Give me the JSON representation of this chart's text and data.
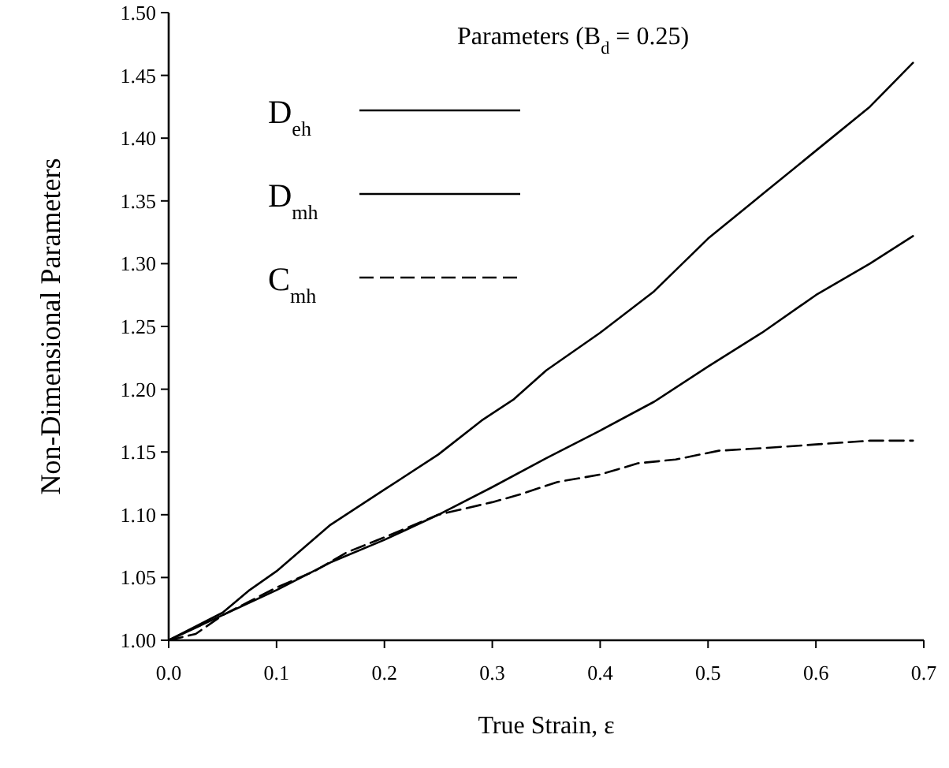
{
  "chart_data": {
    "type": "line",
    "legend_title": "Parameters (B$_{d}$ = 0.25)",
    "xlabel": "True Strain, ε",
    "ylabel": "Non-Dimensional Parameters",
    "xlim": [
      0,
      0.7
    ],
    "xticks": [
      {
        "value": 0,
        "label": "0.0"
      },
      0.1,
      0.2,
      0.3,
      0.4,
      0.5,
      0.6,
      0.7
    ],
    "ylim": [
      1,
      1.5
    ],
    "yticks": [
      {
        "value": 1,
        "label": "1.00"
      },
      1.05,
      {
        "value": 1.1,
        "label": "1.10"
      },
      1.15,
      {
        "value": 1.2,
        "label": "1.20"
      },
      1.25,
      {
        "value": 1.3,
        "label": "1.30"
      },
      1.35,
      {
        "value": 1.4,
        "label": "1.40"
      },
      1.45,
      {
        "value": 1.5,
        "label": "1.50"
      }
    ],
    "grid": false,
    "legend": "top left",
    "series": [
      {
        "name": "D$_{eh}$",
        "color": "#000000",
        "line_style": "solid",
        "x": [
          0,
          0.05,
          0.075,
          0.1,
          0.15,
          0.2,
          0.25,
          0.29,
          0.32,
          0.35,
          0.4,
          0.45,
          0.5,
          0.55,
          0.6,
          0.65,
          0.69
        ],
        "values": [
          1,
          1.022,
          1.04,
          1.055,
          1.092,
          1.12,
          1.148,
          1.175,
          1.192,
          1.215,
          1.245,
          1.278,
          1.32,
          1.355,
          1.39,
          1.425,
          1.46
        ]
      },
      {
        "name": "D$_{mh}$",
        "color": "#000000",
        "line_style": "solid",
        "x": [
          0,
          0.05,
          0.1,
          0.15,
          0.2,
          0.25,
          0.3,
          0.35,
          0.4,
          0.45,
          0.5,
          0.55,
          0.6,
          0.65,
          0.69
        ],
        "values": [
          1,
          1.02,
          1.04,
          1.062,
          1.08,
          1.1,
          1.122,
          1.145,
          1.167,
          1.19,
          1.218,
          1.245,
          1.275,
          1.3,
          1.322
        ]
      },
      {
        "name": "C$_{mh}$",
        "color": "#000000",
        "line_style": "dashed",
        "x": [
          0,
          0.025,
          0.05,
          0.1,
          0.135,
          0.165,
          0.2,
          0.25,
          0.3,
          0.325,
          0.36,
          0.4,
          0.435,
          0.47,
          0.51,
          0.55,
          0.6,
          0.65,
          0.69
        ],
        "values": [
          1,
          1.005,
          1.02,
          1.042,
          1.055,
          1.07,
          1.082,
          1.1,
          1.11,
          1.116,
          1.126,
          1.132,
          1.141,
          1.144,
          1.151,
          1.153,
          1.156,
          1.159,
          1.159
        ]
      }
    ]
  }
}
